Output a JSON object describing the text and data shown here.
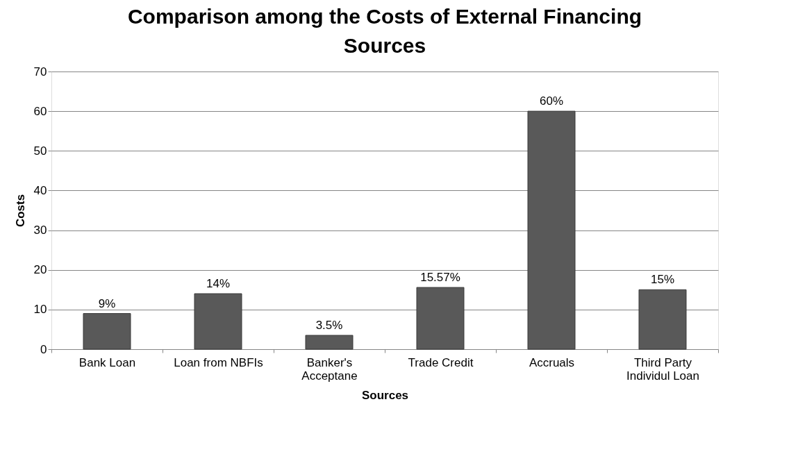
{
  "chart_data": {
    "type": "bar",
    "title": "Comparison among the Costs of External Financing Sources",
    "xlabel": "Sources",
    "ylabel": "Costs",
    "categories": [
      "Bank Loan",
      "Loan from NBFIs",
      "Banker's Acceptane",
      "Trade Credit",
      "Accruals",
      "Third Party Individul Loan"
    ],
    "values": [
      9,
      14,
      3.5,
      15.57,
      60,
      15
    ],
    "value_labels": [
      "9%",
      "14%",
      "3.5%",
      "15.57%",
      "60%",
      "15%"
    ],
    "color": "#595959",
    "ylim": [
      0,
      70
    ],
    "yticks": [
      0,
      10,
      20,
      30,
      40,
      50,
      60,
      70
    ],
    "grid": "y"
  }
}
